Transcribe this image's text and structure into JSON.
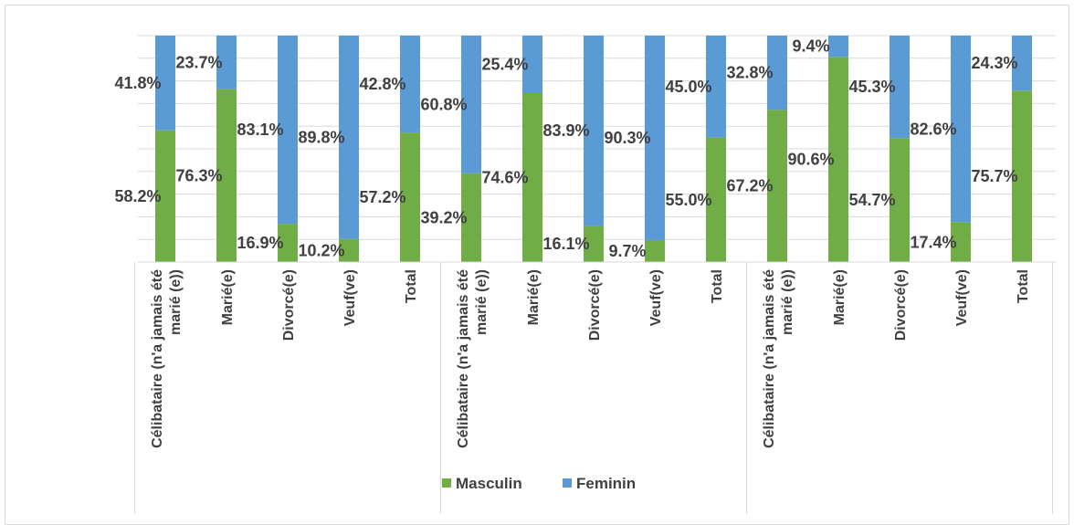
{
  "chart_data": {
    "type": "bar",
    "stacked": "percent",
    "orientation": "vertical",
    "ylim": [
      0,
      100
    ],
    "grid": true,
    "legend_position": "bottom",
    "colors": {
      "Masculin": "#70ad47",
      "Feminin": "#5b9bd5"
    },
    "categories": [
      [
        "Célibataire (n'a jamais été",
        "marié (e))"
      ],
      [
        "Marié(e)"
      ],
      [
        "Divorcé(e)"
      ],
      [
        "Veuf(ve)"
      ],
      [
        "Total"
      ],
      [
        "Célibataire (n'a jamais été",
        "marié (e))"
      ],
      [
        "Marié(e)"
      ],
      [
        "Divorcé(e)"
      ],
      [
        "Veuf(ve)"
      ],
      [
        "Total"
      ],
      [
        "Célibataire (n'a jamais été",
        "marié (e))"
      ],
      [
        "Marié(e)"
      ],
      [
        "Divorcé(e)"
      ],
      [
        "Veuf(ve)"
      ],
      [
        "Total"
      ]
    ],
    "series": [
      {
        "name": "Masculin",
        "values": [
          58.2,
          76.3,
          16.9,
          10.2,
          57.2,
          39.2,
          74.6,
          16.1,
          9.7,
          55.0,
          67.2,
          90.6,
          54.7,
          17.4,
          75.7
        ],
        "labels": [
          "58.2%",
          "76.3%",
          "16.9%",
          "10.2%",
          "57.2%",
          "39.2%",
          "74.6%",
          "16.1%",
          "9.7%",
          "55.0%",
          "67.2%",
          "90.6%",
          "54.7%",
          "17.4%",
          "75.7%"
        ]
      },
      {
        "name": "Feminin",
        "values": [
          41.8,
          23.7,
          83.1,
          89.8,
          42.8,
          60.8,
          25.4,
          83.9,
          90.3,
          45.0,
          32.8,
          9.4,
          45.3,
          82.6,
          24.3
        ],
        "labels": [
          "41.8%",
          "23.7%",
          "83.1%",
          "89.8%",
          "42.8%",
          "60.8%",
          "25.4%",
          "83.9%",
          "90.3%",
          "45.0%",
          "32.8%",
          "9.4%",
          "45.3%",
          "82.6%",
          "24.3%"
        ]
      }
    ]
  },
  "legend": {
    "items": [
      "Masculin",
      "Feminin"
    ]
  }
}
